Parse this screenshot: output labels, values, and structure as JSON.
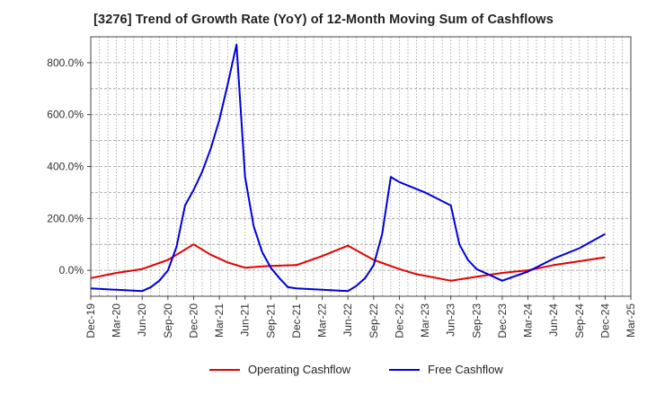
{
  "chart_data": {
    "type": "line",
    "title": "[3276]  Trend of Growth Rate (YoY) of 12-Month Moving Sum of Cashflows",
    "xlabel": "",
    "ylabel": "",
    "x_tick_labels": [
      "Dec-19",
      "Mar-20",
      "Jun-20",
      "Sep-20",
      "Dec-20",
      "Mar-21",
      "Jun-21",
      "Sep-21",
      "Dec-21",
      "Mar-22",
      "Jun-22",
      "Sep-22",
      "Dec-22",
      "Mar-23",
      "Jun-23",
      "Sep-23",
      "Dec-23",
      "Mar-24",
      "Jun-24",
      "Sep-24",
      "Dec-24",
      "Mar-25"
    ],
    "y_tick_labels": [
      "0.0%",
      "200.0%",
      "400.0%",
      "600.0%",
      "800.0%"
    ],
    "y_ticks": [
      0,
      200,
      400,
      600,
      800
    ],
    "ylim": [
      -100,
      900
    ],
    "xlim": [
      0,
      63
    ],
    "grid": true,
    "legend_position": "bottom-center",
    "series": [
      {
        "name": "Operating Cashflow",
        "color": "#e60000",
        "x": [
          0,
          3,
          6,
          9,
          12,
          14,
          16,
          18,
          20,
          21,
          24,
          27,
          30,
          33,
          36,
          38,
          42,
          45,
          48,
          51,
          54,
          57,
          60
        ],
        "y": [
          -30,
          -10,
          5,
          40,
          100,
          60,
          30,
          10,
          15,
          17,
          20,
          55,
          95,
          40,
          5,
          -15,
          -40,
          -25,
          -10,
          0,
          20,
          35,
          50
        ]
      },
      {
        "name": "Free Cashflow",
        "color": "#0000dd",
        "x": [
          0,
          3,
          6,
          7,
          8,
          9,
          10,
          11,
          12,
          13,
          14,
          15,
          16,
          17,
          18,
          19,
          20,
          21,
          22,
          23,
          24,
          27,
          30,
          31,
          32,
          33,
          34,
          35,
          36,
          39,
          42,
          43,
          44,
          45,
          48,
          51,
          54,
          57,
          60
        ],
        "y": [
          -70,
          -75,
          -80,
          -65,
          -40,
          0,
          90,
          250,
          310,
          380,
          470,
          580,
          720,
          870,
          360,
          170,
          70,
          10,
          -30,
          -65,
          -70,
          -75,
          -80,
          -60,
          -30,
          20,
          140,
          360,
          340,
          300,
          250,
          100,
          40,
          5,
          -40,
          -5,
          45,
          85,
          140
        ]
      }
    ]
  }
}
